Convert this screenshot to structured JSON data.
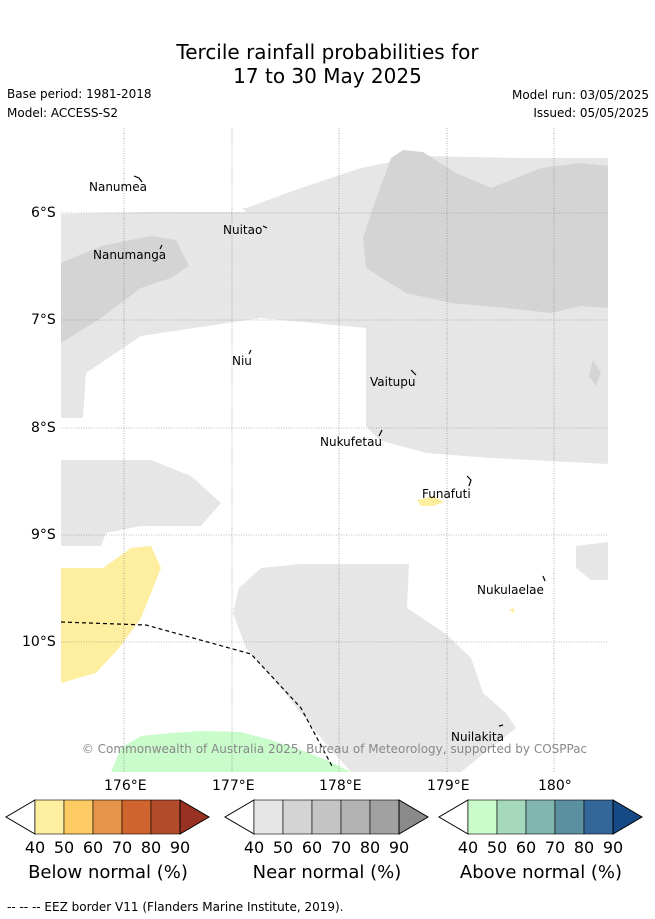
{
  "title_line1": "Tercile rainfall probabilities for",
  "title_line2": "17 to 30 May 2025",
  "base_period": "Base period: 1981-2018",
  "model": "Model: ACCESS-S2",
  "model_run": "Model run: 03/05/2025",
  "issued": "Issued: 05/05/2025",
  "map": {
    "lat_labels": [
      "6°S",
      "7°S",
      "8°S",
      "9°S",
      "10°S"
    ],
    "lon_labels": [
      "176°E",
      "177°E",
      "178°E",
      "179°E",
      "180°"
    ],
    "places": [
      "Nanumea",
      "Nuitao",
      "Nanumanga",
      "Niu",
      "Vaitupu",
      "Nukufetau",
      "Funafuti",
      "Nukulaelae",
      "Nuilakita"
    ],
    "copyright": "© Commonwealth of Australia 2025, Bureau of Meteorology, supported by COSPPac"
  },
  "colorbars": [
    {
      "title": "Below normal (%)",
      "ticks": [
        "40",
        "50",
        "60",
        "70",
        "80",
        "90"
      ],
      "colors": [
        "#ffffff",
        "#feeea0",
        "#fdcb64",
        "#e5954a",
        "#d0642f",
        "#b34b2a",
        "#9a3223"
      ]
    },
    {
      "title": "Near normal (%)",
      "ticks": [
        "40",
        "50",
        "60",
        "70",
        "80",
        "90"
      ],
      "colors": [
        "#ffffff",
        "#e6e6e6",
        "#d4d4d4",
        "#c4c4c4",
        "#b2b2b2",
        "#a1a1a1",
        "#8a8a8a"
      ]
    },
    {
      "title": "Above normal (%)",
      "ticks": [
        "40",
        "50",
        "60",
        "70",
        "80",
        "90"
      ],
      "colors": [
        "#ffffff",
        "#c9fbcb",
        "#a5d8bd",
        "#81b6b0",
        "#5a90a0",
        "#336799",
        "#164a86"
      ]
    }
  ],
  "eez_note": "--  --  -- EEZ border V11 (Flanders Marine Institute, 2019)."
}
